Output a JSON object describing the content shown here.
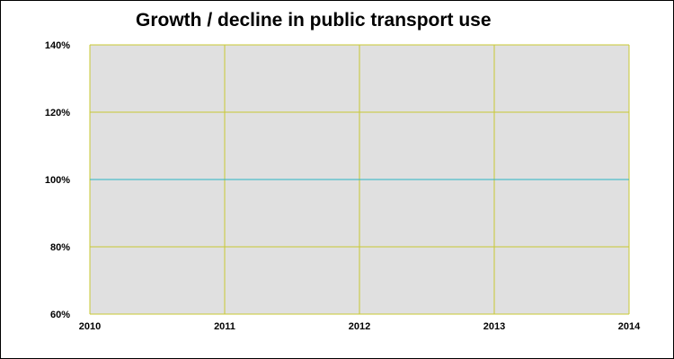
{
  "chart_data": {
    "type": "line",
    "title": "Growth / decline in public transport use",
    "xlabel": "",
    "ylabel": "",
    "x": [
      2010,
      2011,
      2012,
      2013,
      2014
    ],
    "x_tick_labels": [
      "2010",
      "2011",
      "2012",
      "2013",
      "2014"
    ],
    "y_tick_labels": [
      "60%",
      "80%",
      "100%",
      "120%",
      "140%"
    ],
    "y_ticks": [
      60,
      80,
      100,
      120,
      140
    ],
    "xlim": [
      2010,
      2014
    ],
    "ylim": [
      60,
      140
    ],
    "grid": true,
    "legend": "none",
    "series": [
      {
        "values": [
          100,
          100,
          100,
          100,
          100
        ],
        "color": "#2ab3c4"
      }
    ],
    "colors": {
      "plot_background": "#e0e0e0",
      "gridline": "#c8c832"
    }
  }
}
